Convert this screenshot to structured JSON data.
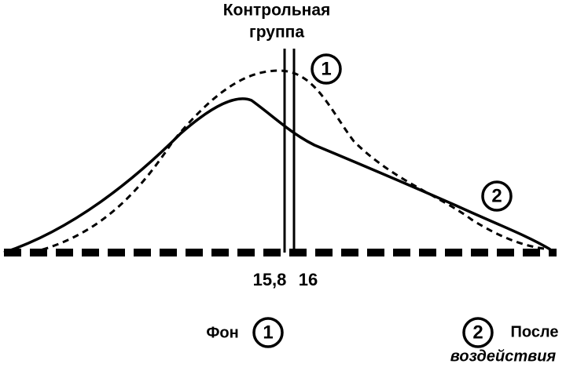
{
  "header": {
    "title_lines": [
      "Контрольная",
      "группа"
    ]
  },
  "axis": {
    "labels": [
      "15,8",
      "16"
    ]
  },
  "curves": [
    {
      "marker": "1",
      "label_lines": [
        "Фон"
      ]
    },
    {
      "marker": "2",
      "label_lines": [
        "После",
        "воздействия"
      ]
    }
  ]
}
